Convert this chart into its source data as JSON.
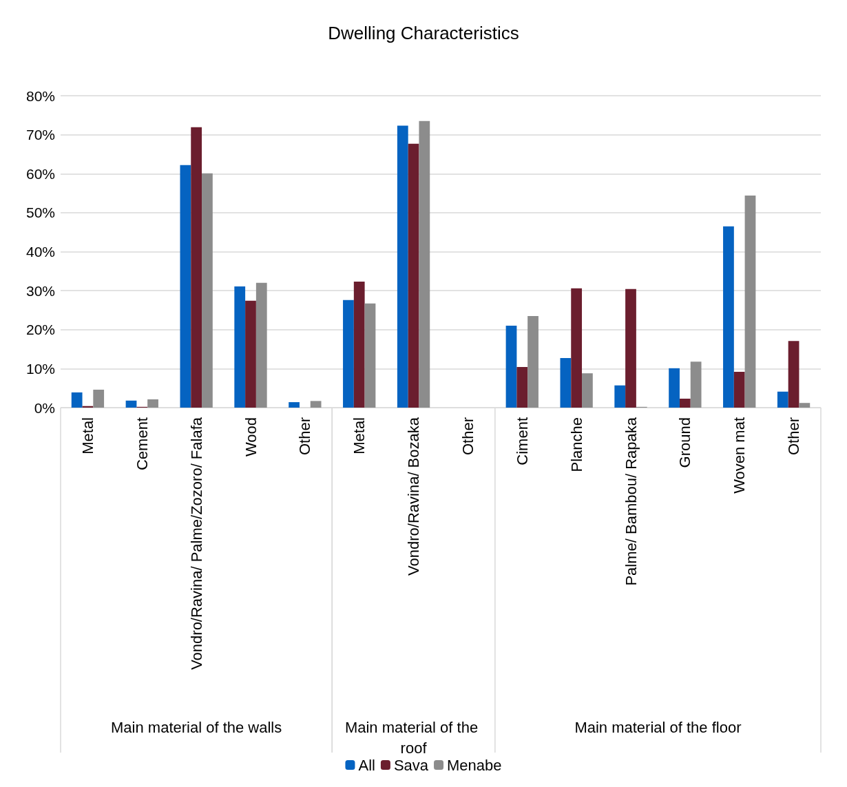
{
  "chart_data": {
    "type": "bar",
    "title": "Dwelling Characteristics",
    "categories": [
      "Metal",
      "Cement",
      "Vondro/Ravina/ Palme/Zozoro/ Falafa",
      "Wood",
      "Other",
      "Metal",
      "Vondro/Ravina/ Bozaka",
      "Other",
      "Ciment",
      "Planche",
      "Palme/ Bambou/ Rapaka",
      "Ground",
      "Woven mat",
      "Other"
    ],
    "series": [
      {
        "name": "All",
        "color": "#0563c1",
        "values": [
          0.039,
          0.018,
          0.622,
          0.311,
          0.014,
          0.276,
          0.723,
          0,
          0.21,
          0.127,
          0.057,
          0.101,
          0.465,
          0.041
        ]
      },
      {
        "name": "Sava",
        "color": "#6b1e2e",
        "values": [
          0.004,
          0.002,
          0.719,
          0.274,
          0,
          0.323,
          0.677,
          0,
          0.104,
          0.306,
          0.304,
          0.023,
          0.092,
          0.171
        ]
      },
      {
        "name": "Menabe",
        "color": "#8c8c8c",
        "values": [
          0.046,
          0.021,
          0.601,
          0.32,
          0.017,
          0.267,
          0.735,
          0,
          0.235,
          0.088,
          0.002,
          0.118,
          0.544,
          0.012
        ]
      }
    ],
    "ylim": [
      0,
      0.8
    ],
    "yticks": [
      {
        "value": 0,
        "label": "0%"
      },
      {
        "value": 0.1,
        "label": "10%"
      },
      {
        "value": 0.2,
        "label": "20%"
      },
      {
        "value": 0.3,
        "label": "30%"
      },
      {
        "value": 0.4,
        "label": "40%"
      },
      {
        "value": 0.5,
        "label": "50%"
      },
      {
        "value": 0.6,
        "label": "60%"
      },
      {
        "value": 0.7,
        "label": "70%"
      },
      {
        "value": 0.8,
        "label": "80%"
      }
    ],
    "annotations": [
      "Main material of the walls",
      "Main material of the roof",
      "Main material of the floor"
    ],
    "grid": "y",
    "legend": "bottom"
  }
}
